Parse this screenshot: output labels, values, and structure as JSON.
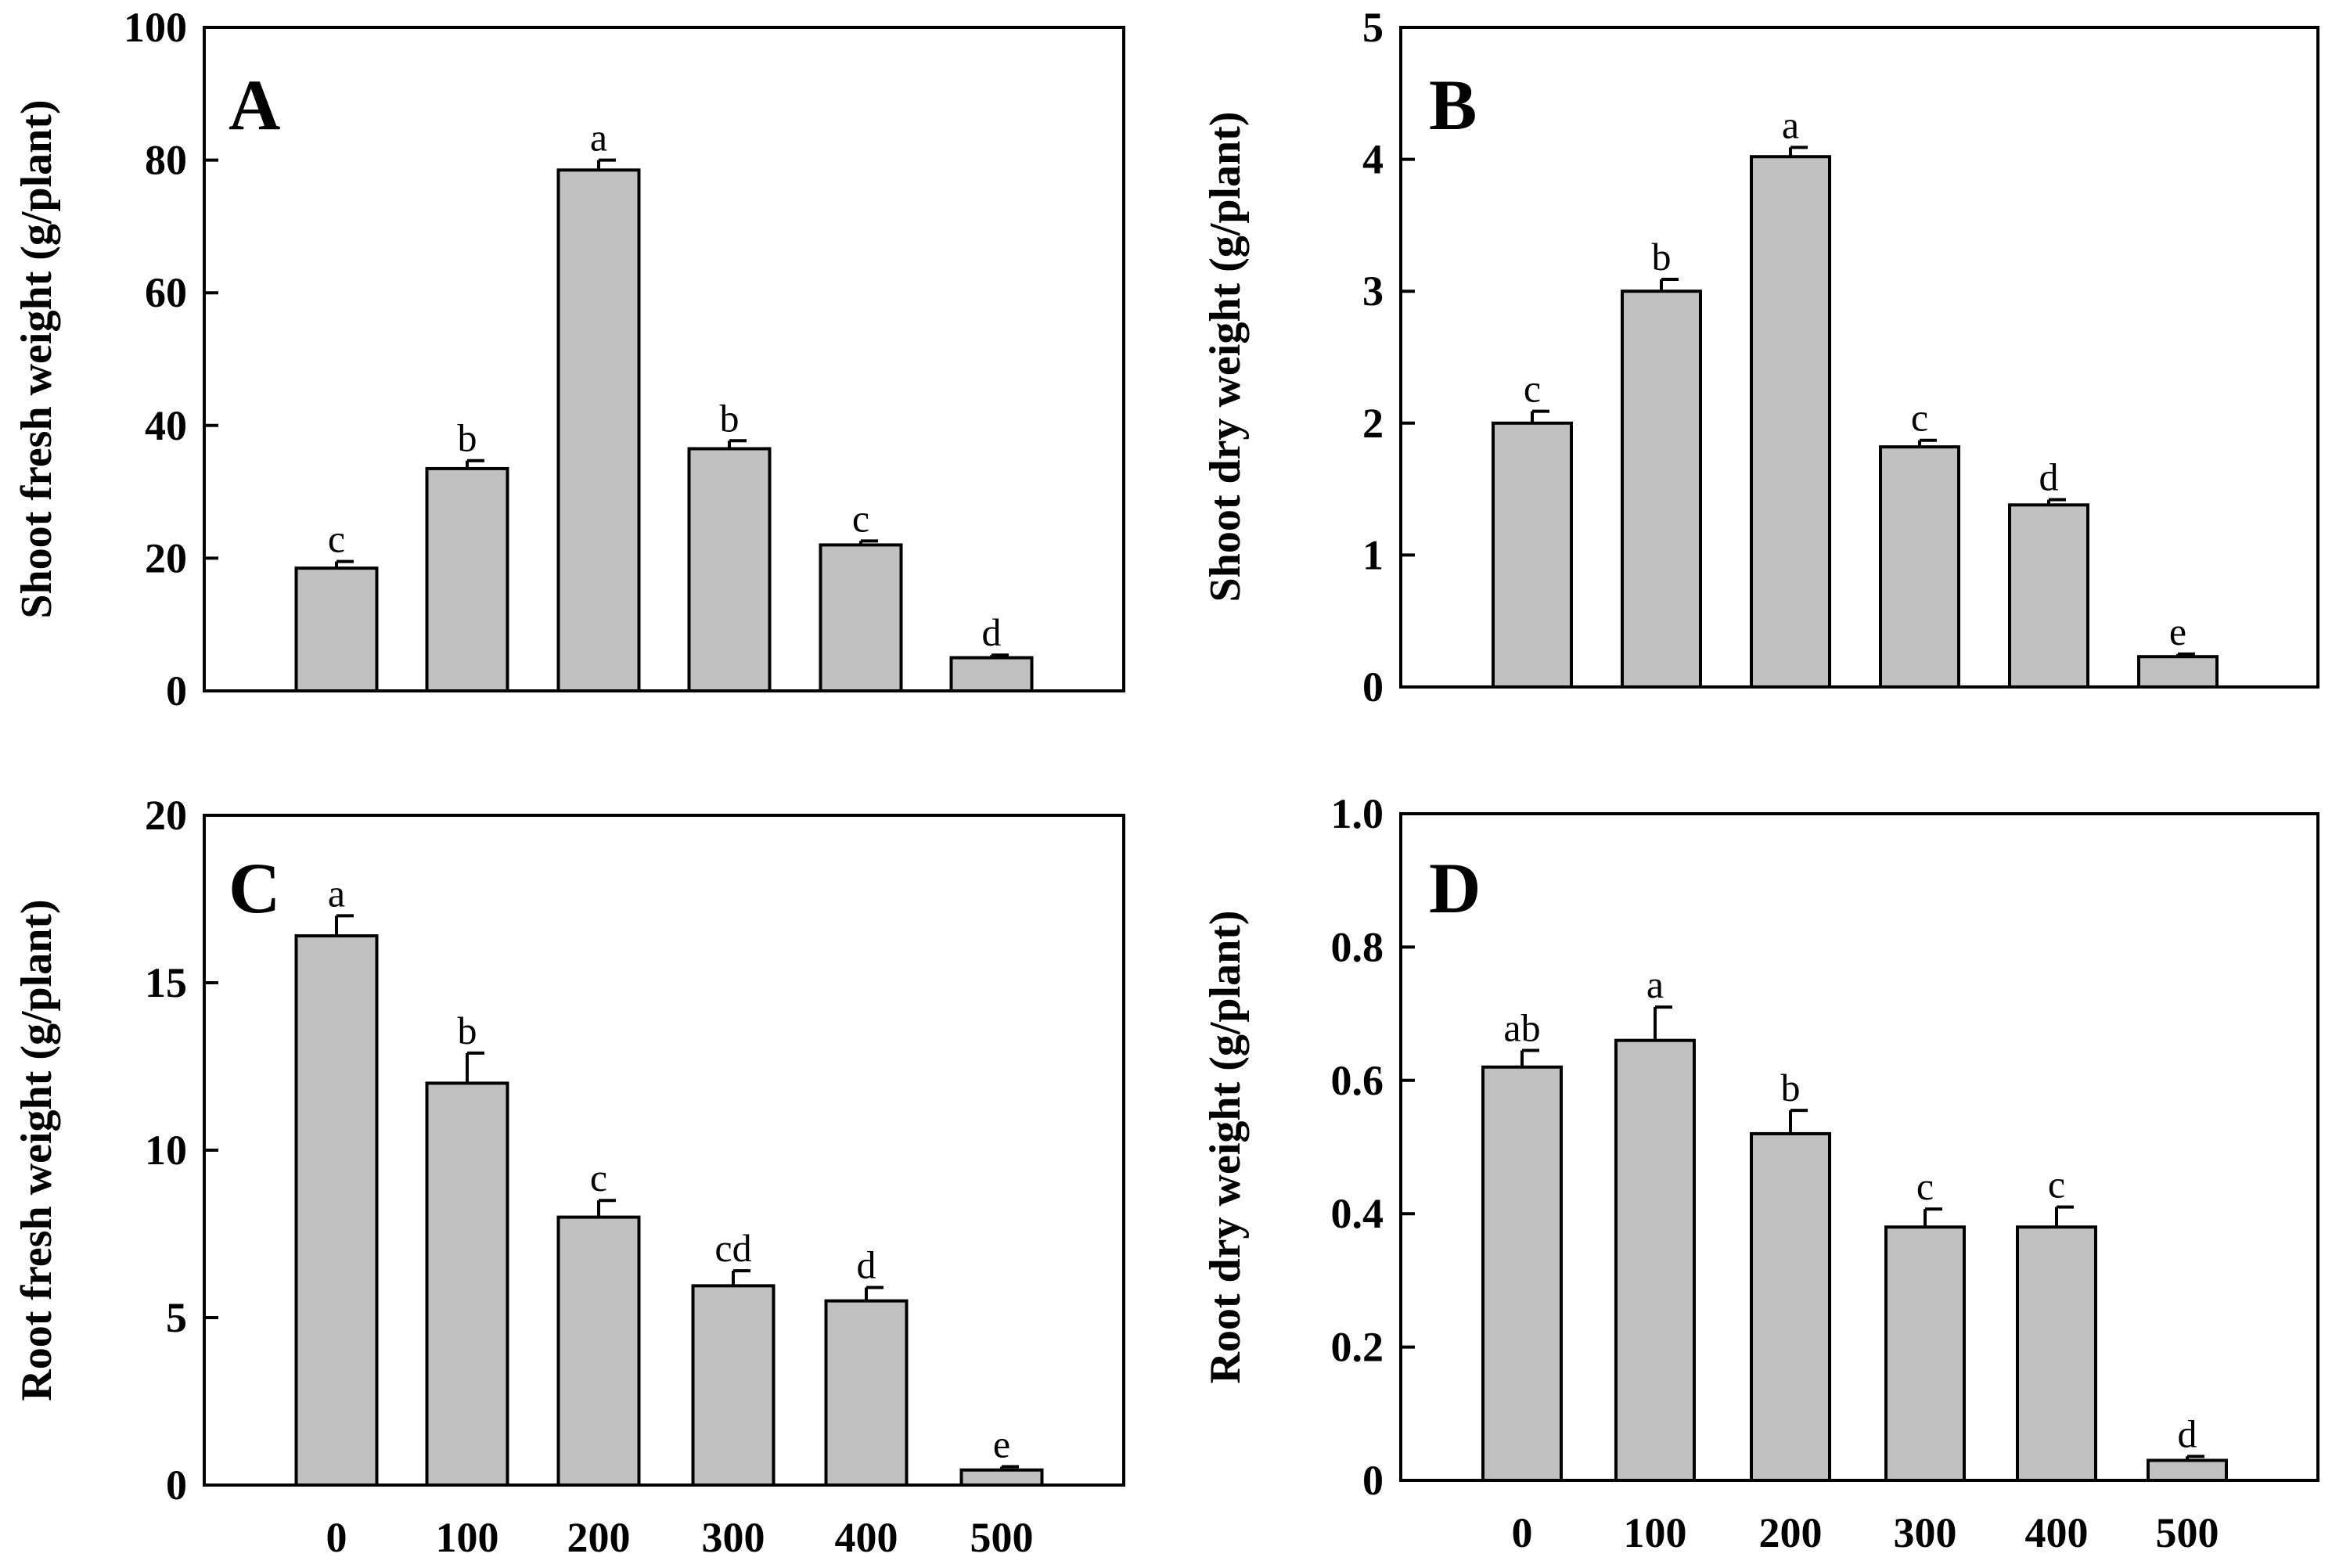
{
  "chart_data": [
    {
      "type": "bar",
      "panel": "A",
      "ylabel": "Shoot fresh weight (g/plant)",
      "xlabel": "",
      "categories": [
        "0",
        "100",
        "200",
        "300",
        "400",
        "500"
      ],
      "show_category_labels": false,
      "values": [
        18.5,
        33.5,
        78.5,
        36.5,
        22.0,
        5.0
      ],
      "errors": [
        1.0,
        1.2,
        1.5,
        1.2,
        0.6,
        0.4
      ],
      "significance": [
        "c",
        "b",
        "a",
        "b",
        "c",
        "d"
      ],
      "ylim": [
        0,
        100
      ],
      "yticks": [
        0,
        20,
        40,
        60,
        80,
        100
      ],
      "ytick_labels": [
        "0",
        "20",
        "40",
        "60",
        "80",
        "100"
      ],
      "bar_color": "#c0c0c0",
      "grid": false
    },
    {
      "type": "bar",
      "panel": "B",
      "ylabel": "Shoot dry weight (g/plant)",
      "xlabel": "",
      "categories": [
        "0",
        "100",
        "200",
        "300",
        "400",
        "500"
      ],
      "show_category_labels": false,
      "values": [
        2.0,
        3.0,
        4.02,
        1.82,
        1.38,
        0.23
      ],
      "errors": [
        0.09,
        0.09,
        0.07,
        0.05,
        0.04,
        0.02
      ],
      "significance": [
        "c",
        "b",
        "a",
        "c",
        "d",
        "e"
      ],
      "ylim": [
        0,
        5
      ],
      "yticks": [
        0,
        1,
        2,
        3,
        4,
        5
      ],
      "ytick_labels": [
        "0",
        "1",
        "2",
        "3",
        "4",
        "5"
      ],
      "bar_color": "#c0c0c0",
      "grid": false
    },
    {
      "type": "bar",
      "panel": "C",
      "ylabel": "Root fresh weight (g/plant)",
      "xlabel": "",
      "categories": [
        "0",
        "100",
        "200",
        "300",
        "400",
        "500"
      ],
      "show_category_labels": true,
      "values": [
        16.4,
        12.0,
        8.0,
        5.95,
        5.5,
        0.45
      ],
      "errors": [
        0.6,
        0.9,
        0.5,
        0.45,
        0.4,
        0.1
      ],
      "significance": [
        "a",
        "b",
        "c",
        "cd",
        "d",
        "e"
      ],
      "ylim": [
        0,
        20
      ],
      "yticks": [
        0,
        5,
        10,
        15,
        20
      ],
      "ytick_labels": [
        "0",
        "5",
        "10",
        "15",
        "20"
      ],
      "bar_color": "#c0c0c0",
      "grid": false
    },
    {
      "type": "bar",
      "panel": "D",
      "ylabel": "Root dry weight (g/plant)",
      "xlabel": "",
      "categories": [
        "0",
        "100",
        "200",
        "300",
        "400",
        "500"
      ],
      "show_category_labels": true,
      "values": [
        0.62,
        0.66,
        0.52,
        0.38,
        0.38,
        0.03
      ],
      "errors": [
        0.025,
        0.05,
        0.035,
        0.027,
        0.03,
        0.006
      ],
      "significance": [
        "ab",
        "a",
        "b",
        "c",
        "c",
        "d"
      ],
      "ylim": [
        0,
        1.0
      ],
      "yticks": [
        0,
        0.2,
        0.4,
        0.6,
        0.8,
        1.0
      ],
      "ytick_labels": [
        "0",
        "0.2",
        "0.4",
        "0.6",
        "0.8",
        "1.0"
      ],
      "bar_color": "#c0c0c0",
      "grid": false
    }
  ]
}
